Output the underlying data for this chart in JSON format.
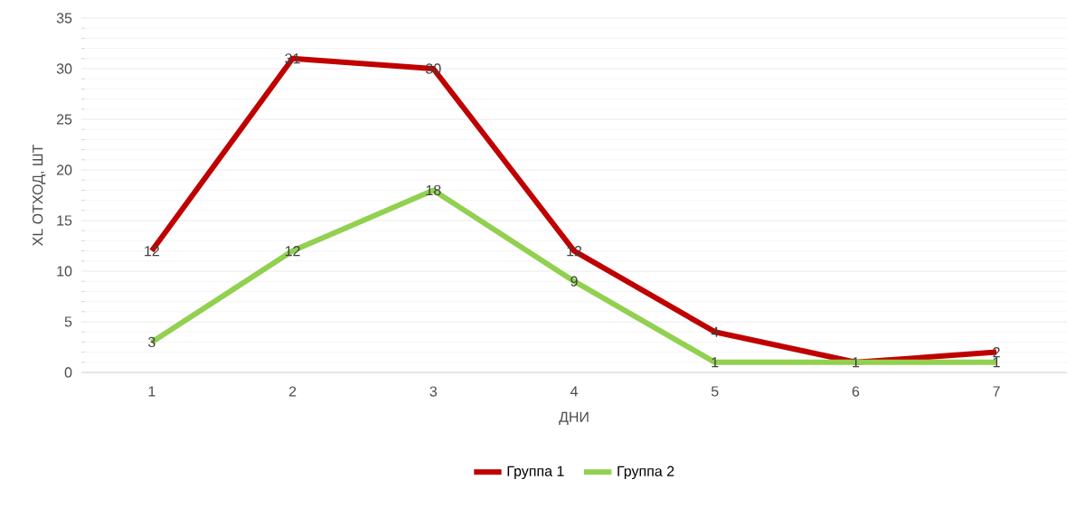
{
  "chart_data": {
    "type": "line",
    "xlabel": "ДНИ",
    "ylabel": "XL ОТХОД, ШТ",
    "categories": [
      "1",
      "2",
      "3",
      "4",
      "5",
      "6",
      "7"
    ],
    "series": [
      {
        "name": "Группа 1",
        "color": "#c00000",
        "values": [
          12,
          31,
          30,
          12,
          4,
          1,
          2
        ],
        "value_labels": [
          "12",
          "31",
          "30",
          "12",
          "4",
          null,
          "2"
        ]
      },
      {
        "name": "Группа 2",
        "color": "#92d050",
        "values": [
          3,
          12,
          18,
          9,
          1,
          1,
          1
        ],
        "value_labels": [
          "3",
          "12",
          "18",
          "9",
          "1",
          "1",
          "1"
        ]
      }
    ],
    "ylim": [
      0,
      35
    ],
    "yticks": [
      0,
      5,
      10,
      15,
      20,
      25,
      30,
      35
    ],
    "grid": "y",
    "legend": "bottom",
    "marker": "none",
    "line_style": "solid"
  }
}
